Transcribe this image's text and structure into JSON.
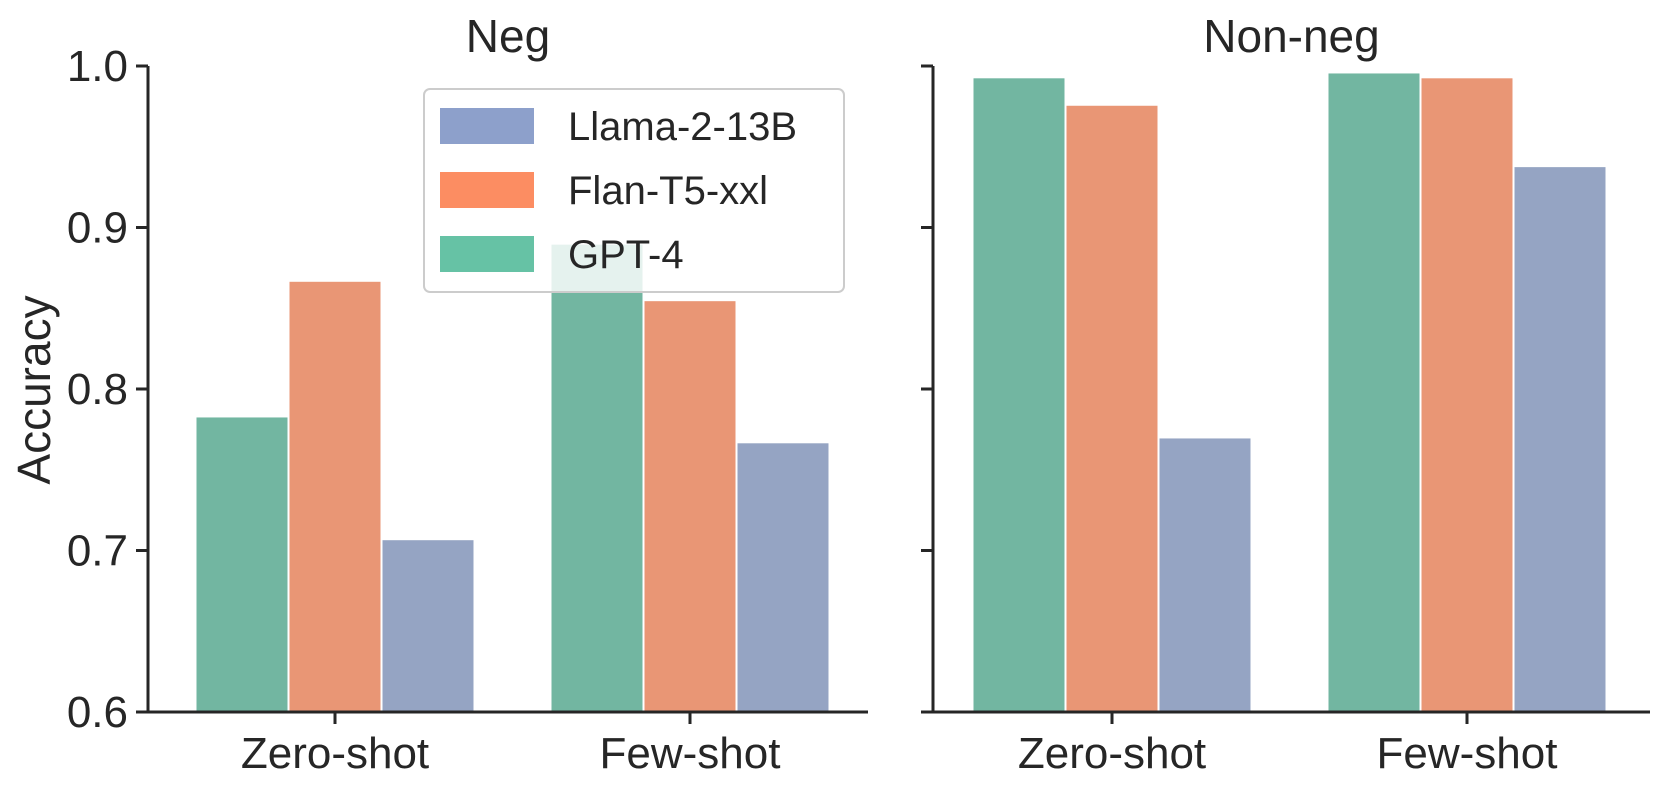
{
  "chart_data": {
    "type": "bar",
    "ylabel": "Accuracy",
    "ylim": [
      0.6,
      1.0
    ],
    "yticks": [
      "0.6",
      "0.7",
      "0.8",
      "0.9",
      "1.0"
    ],
    "categories": [
      "Zero-shot",
      "Few-shot"
    ],
    "legend": {
      "placement": "top-right of first panel",
      "entries": [
        {
          "label": "Llama-2-13B",
          "color": "#8DA0CB"
        },
        {
          "label": "Flan-T5-xxl",
          "color": "#FC8D62"
        },
        {
          "label": "GPT-4",
          "color": "#66C2A5"
        }
      ]
    },
    "bar_order": [
      "GPT-4",
      "Flan-T5-xxl",
      "Llama-2-13B"
    ],
    "bar_colors": {
      "GPT-4": "#72B6A1",
      "Flan-T5-xxl": "#E99675",
      "Llama-2-13B": "#95A4C3"
    },
    "panels": [
      {
        "title": "Neg",
        "series": [
          {
            "name": "GPT-4",
            "values": [
              0.783,
              0.89
            ]
          },
          {
            "name": "Flan-T5-xxl",
            "values": [
              0.867,
              0.855
            ]
          },
          {
            "name": "Llama-2-13B",
            "values": [
              0.707,
              0.767
            ]
          }
        ]
      },
      {
        "title": "Non-neg",
        "series": [
          {
            "name": "GPT-4",
            "values": [
              0.993,
              0.996
            ]
          },
          {
            "name": "Flan-T5-xxl",
            "values": [
              0.976,
              0.993
            ]
          },
          {
            "name": "Llama-2-13B",
            "values": [
              0.77,
              0.938
            ]
          }
        ]
      }
    ]
  }
}
